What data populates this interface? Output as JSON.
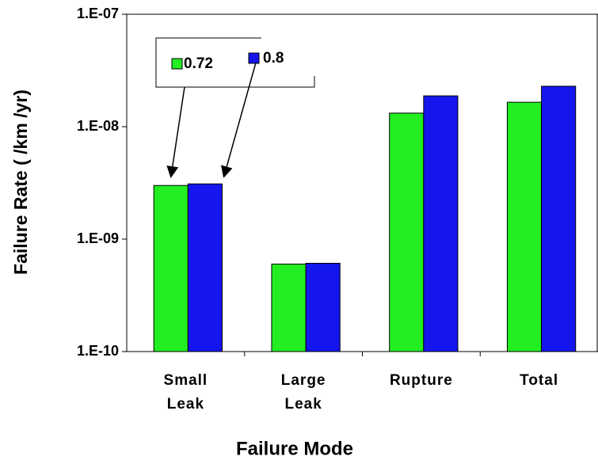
{
  "chart_data": {
    "type": "bar",
    "ylabel": "Failure Rate ( /km /yr)",
    "xlabel": "Failure Mode",
    "categories": [
      "Small Leak",
      "Large Leak",
      "Rupture",
      "Total"
    ],
    "series": [
      {
        "name": "0.72",
        "color": "#22ee22",
        "values": [
          3e-09,
          6e-10,
          1.32e-08,
          1.65e-08
        ]
      },
      {
        "name": "0.8",
        "color": "#1515ee",
        "values": [
          3.1e-09,
          6.1e-10,
          1.88e-08,
          2.29e-08
        ]
      }
    ],
    "ylim": [
      1e-10,
      1e-07
    ],
    "yticks": [
      {
        "value": 1e-10,
        "label": "1.E-10"
      },
      {
        "value": 1e-09,
        "label": "1.E-09"
      },
      {
        "value": 1e-08,
        "label": "1.E-08"
      },
      {
        "value": 1e-07,
        "label": "1.E-07"
      }
    ],
    "log_scale": true
  }
}
